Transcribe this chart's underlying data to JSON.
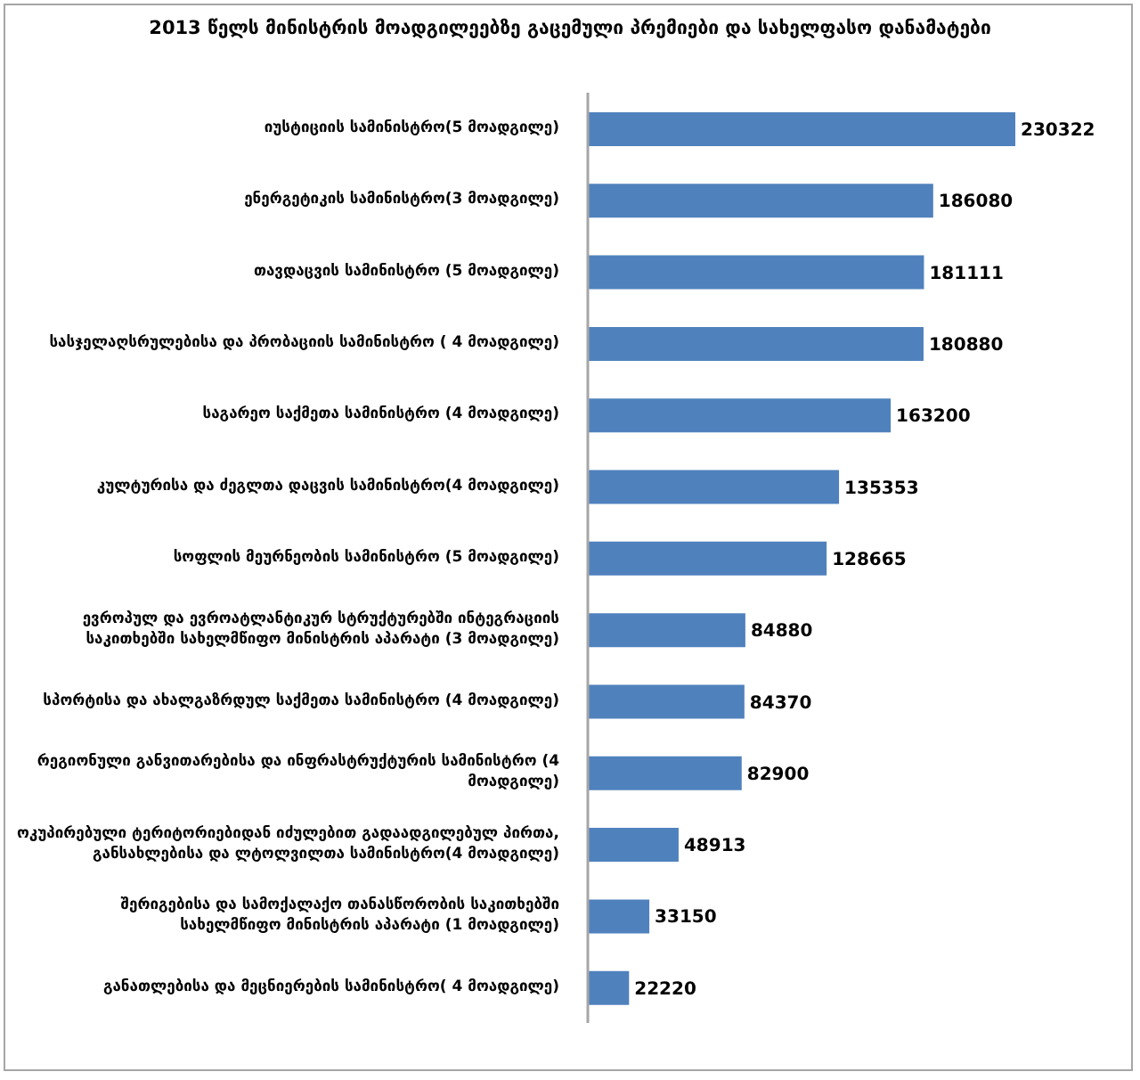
{
  "chart_data": {
    "type": "bar",
    "orientation": "horizontal",
    "title": "2013 წელს მინისტრის მოადგილეებზე გაცემული პრემიები და სახელფასო დანამატები",
    "categories": [
      "იუსტიციის სამინისტრო(5 მოადგილე)",
      "ენერგეტიკის სამინისტრო(3 მოადგილე)",
      "თავდაცვის სამინისტრო (5 მოადგილე)",
      "სასჯელაღსრულებისა და პრობაციის სამინისტრო ( 4 მოადგილე)",
      "საგარეო საქმეთა სამინისტრო (4 მოადგილე)",
      "კულტურისა და ძეგლთა დაცვის სამინისტრო(4 მოადგილე)",
      "სოფლის მეურნეობის სამინისტრო (5 მოადგილე)",
      "ევროპულ და ევროატლანტიკურ სტრუქტურებში ინტეგრაციის საკითხებში სახელმწიფო მინისტრის აპარატი (3 მოადგილე)",
      "სპორტისა და ახალგაზრდულ საქმეთა სამინისტრო (4 მოადგილე)",
      "რეგიონული განვითარებისა და ინფრასტრუქტურის სამინისტრო (4 მოადგილე)",
      "ოკუპირებული ტერიტორიებიდან იძულებით გადაადგილებულ პირთა, განსახლებისა და ლტოლვილთა სამინისტრო(4 მოადგილე)",
      "შერიგებისა და სამოქალაქო თანასწორობის საკითხებში სახელმწიფო მინისტრის აპარატი (1 მოადგილე)",
      "განათლებისა და მეცნიერების სამინისტრო( 4 მოადგილე)"
    ],
    "values": [
      230322,
      186080,
      181111,
      180880,
      163200,
      135353,
      128665,
      84880,
      84370,
      82900,
      48913,
      33150,
      22220
    ],
    "color": "#4f81bd",
    "data_labels": true
  }
}
